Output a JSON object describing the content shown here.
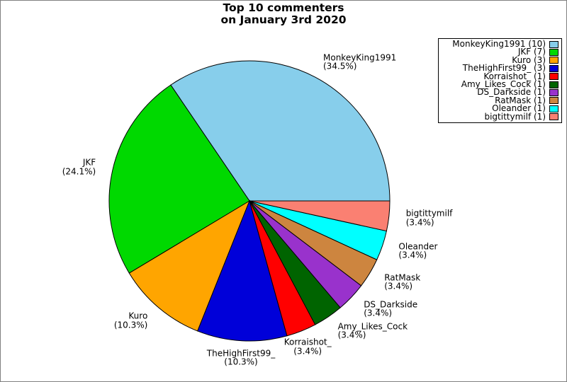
{
  "frame": {
    "background": "#ffffff",
    "border_color": "#808080"
  },
  "chart_data": {
    "type": "pie",
    "title": "Top 10 commenters",
    "subtitle": "on January 3rd 2020",
    "start_angle_deg": 0,
    "direction": "counterclockwise",
    "legend_position": "top-right",
    "slices": [
      {
        "name": "MonkeyKing1991",
        "count": 10,
        "pct_label": "(34.5%)",
        "legend_label": "MonkeyKing1991 (10)",
        "color": "#87CEEB"
      },
      {
        "name": "JKF",
        "count": 7,
        "pct_label": "(24.1%)",
        "legend_label": "JKF (7)",
        "color": "#00D900"
      },
      {
        "name": "Kuro",
        "count": 3,
        "pct_label": "(10.3%)",
        "legend_label": "Kuro (3)",
        "color": "#FFA500"
      },
      {
        "name": "TheHighFirst99_",
        "count": 3,
        "pct_label": "(10.3%)",
        "legend_label": "TheHighFirst99_ (3)",
        "color": "#0000D9"
      },
      {
        "name": "Korraishot_",
        "count": 1,
        "pct_label": "(3.4%)",
        "legend_label": "Korraishot_ (1)",
        "color": "#FF0000"
      },
      {
        "name": "Amy_Likes_Cock",
        "count": 1,
        "pct_label": "(3.4%)",
        "legend_label": "Amy_Likes_Cock (1)",
        "color": "#006400"
      },
      {
        "name": "DS_Darkside",
        "count": 1,
        "pct_label": "(3.4%)",
        "legend_label": "DS_Darkside (1)",
        "color": "#9932CC"
      },
      {
        "name": "RatMask",
        "count": 1,
        "pct_label": "(3.4%)",
        "legend_label": "RatMask (1)",
        "color": "#CD853F"
      },
      {
        "name": "Oleander",
        "count": 1,
        "pct_label": "(3.4%)",
        "legend_label": "Oleander (1)",
        "color": "#00FFFF"
      },
      {
        "name": "bigtittymilf",
        "count": 1,
        "pct_label": "(3.4%)",
        "legend_label": "bigtittymilf (1)",
        "color": "#FA8072"
      }
    ]
  }
}
